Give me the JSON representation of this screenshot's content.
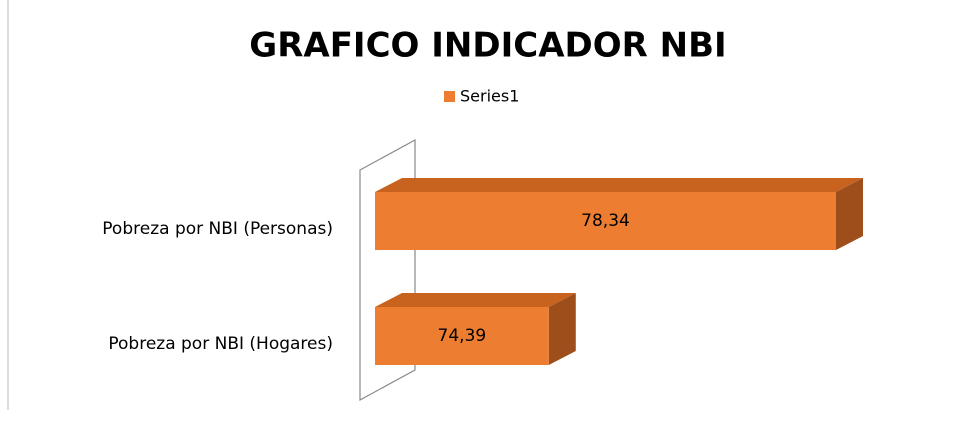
{
  "chart_data": {
    "type": "bar3d",
    "orientation": "horizontal",
    "title": "GRAFICO INDICADOR NBI",
    "categories": [
      "Pobreza por NBI (Personas)",
      "Pobreza por NBI (Hogares)"
    ],
    "series": [
      {
        "name": "Series1",
        "color": "#ed7d31",
        "values": [
          78.34,
          74.39
        ],
        "value_labels": [
          "78,34",
          "74,39"
        ]
      }
    ],
    "xlim": [
      72,
      79
    ],
    "legend": "top"
  }
}
